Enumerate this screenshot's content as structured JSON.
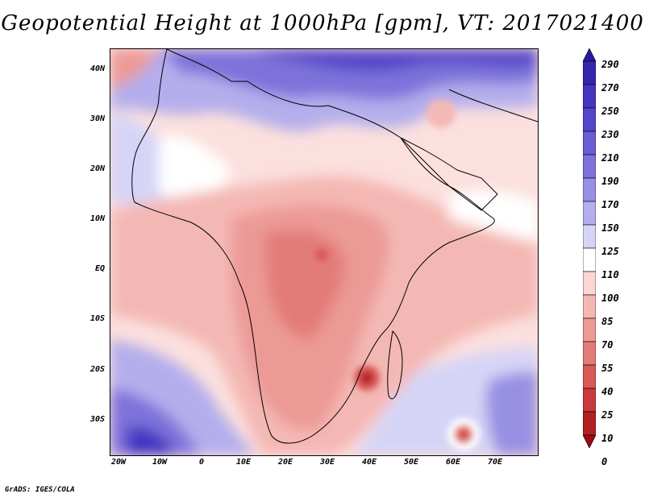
{
  "title": "Geopotential Height at 1000hPa [gpm], VT: 2017021400",
  "credit": "GrADS: IGES/COLA",
  "map": {
    "lat_labels": [
      "40N",
      "30N",
      "20N",
      "10N",
      "EQ",
      "10S",
      "20S",
      "30S"
    ],
    "lon_labels": [
      "20W",
      "10W",
      "0",
      "10E",
      "20E",
      "30E",
      "40E",
      "50E",
      "60E",
      "70E"
    ],
    "extent": {
      "lon_min": -22,
      "lon_max": 80,
      "lat_min": -37,
      "lat_max": 44
    }
  },
  "colorbar": {
    "levels": [
      "290",
      "270",
      "250",
      "230",
      "210",
      "190",
      "170",
      "150",
      "125",
      "110",
      "100",
      "85",
      "70",
      "55",
      "40",
      "25",
      "10",
      "0"
    ],
    "colors": [
      "#2a1aa0",
      "#3526b0",
      "#4434c0",
      "#5446c8",
      "#6a5cd2",
      "#7e72da",
      "#9890e2",
      "#b4aeec",
      "#d6d4f6",
      "#ffffff",
      "#fbd6d4",
      "#f4b8b4",
      "#ec9a96",
      "#e27c78",
      "#d85a58",
      "#c83a3c",
      "#b22024",
      "#980c12"
    ]
  }
}
